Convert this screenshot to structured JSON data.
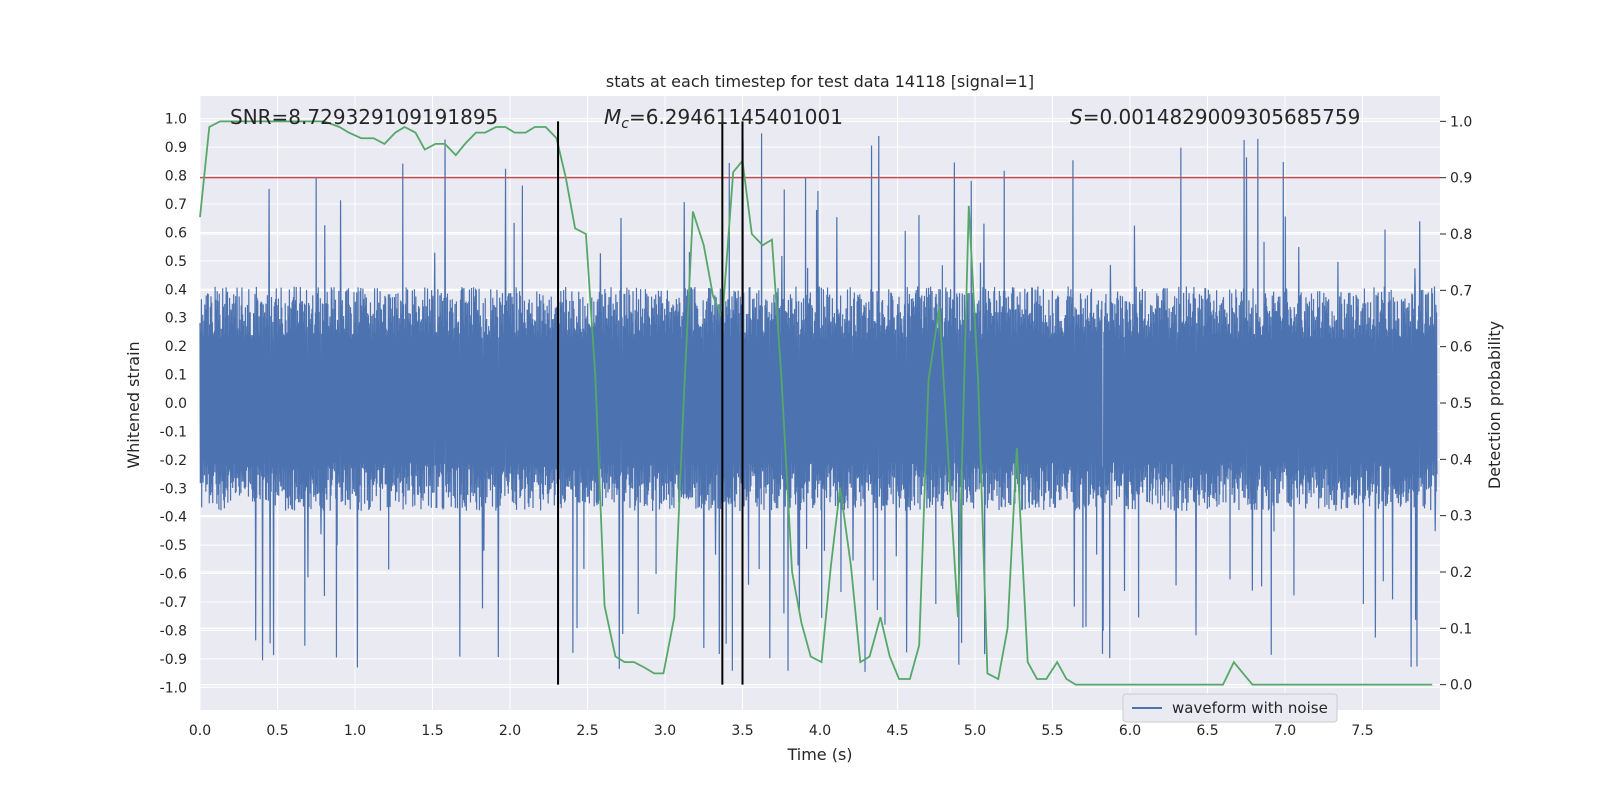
{
  "chart_data": {
    "type": "line",
    "title": "stats at each timestep for test data 14118 [signal=1]",
    "xlabel": "Time (s)",
    "ylabel": "Whitened strain",
    "ylabel_right": "Detection probability",
    "xlim": [
      0.0,
      8.0
    ],
    "ylim": [
      -1.08,
      1.08
    ],
    "ylim_right": [
      -0.045,
      1.045
    ],
    "x_ticks": [
      "0.0",
      "0.5",
      "1.0",
      "1.5",
      "2.0",
      "2.5",
      "3.0",
      "3.5",
      "4.0",
      "4.5",
      "5.0",
      "5.5",
      "6.0",
      "6.5",
      "7.0",
      "7.5"
    ],
    "y_ticks": [
      "1.0",
      "0.9",
      "0.8",
      "0.7",
      "0.6",
      "0.5",
      "0.4",
      "0.3",
      "0.2",
      "0.1",
      "0.0",
      "-0.1",
      "-0.2",
      "-0.3",
      "-0.4",
      "-0.5",
      "-0.6",
      "-0.7",
      "-0.8",
      "-0.9",
      "-1.0"
    ],
    "y_ticks_right": [
      "1.0",
      "0.9",
      "0.8",
      "0.7",
      "0.6",
      "0.5",
      "0.4",
      "0.3",
      "0.2",
      "0.1",
      "0.0"
    ],
    "grid": true,
    "legend": {
      "position": "lower-right",
      "entries": [
        "waveform with noise"
      ]
    },
    "annotations": {
      "snr": "SNR=8.729329109191895",
      "mc": "=6.29461145401001",
      "mc_symbol": "M",
      "mc_sub": "c",
      "s": "=0.0014829009305685759",
      "s_symbol": "S"
    },
    "colors": {
      "waveform": "#4c72b0",
      "probability": "#55a868",
      "threshold": "#c44e52",
      "markers": "#000000",
      "background": "#eaeaf2",
      "grid": "#ffffff"
    },
    "threshold_right": 0.9,
    "vertical_markers_x": [
      2.31,
      3.37,
      3.5
    ],
    "waveform_envelope": {
      "dense_band": [
        -0.38,
        0.41
      ],
      "spike_range": [
        -0.97,
        1.0
      ],
      "sample_rate_hz": 2048
    },
    "series": [
      {
        "name": "",
        "axis": "right",
        "x": [
          0.0,
          0.06,
          0.13,
          0.2,
          0.3,
          0.4,
          0.5,
          0.6,
          0.7,
          0.8,
          0.9,
          0.96,
          1.04,
          1.12,
          1.19,
          1.26,
          1.32,
          1.39,
          1.45,
          1.52,
          1.58,
          1.65,
          1.71,
          1.78,
          1.84,
          1.91,
          1.97,
          2.03,
          2.1,
          2.16,
          2.23,
          2.3,
          2.36,
          2.42,
          2.49,
          2.55,
          2.61,
          2.68,
          2.74,
          2.8,
          2.87,
          2.93,
          2.99,
          3.06,
          3.12,
          3.18,
          3.25,
          3.31,
          3.37,
          3.44,
          3.5,
          3.56,
          3.63,
          3.69,
          3.75,
          3.82,
          3.88,
          3.94,
          4.01,
          4.07,
          4.13,
          4.2,
          4.26,
          4.32,
          4.39,
          4.45,
          4.51,
          4.58,
          4.64,
          4.7,
          4.77,
          4.83,
          4.89,
          4.96,
          5.02,
          5.08,
          5.15,
          5.21,
          5.27,
          5.34,
          5.4,
          5.46,
          5.53,
          5.59,
          5.65,
          5.72,
          5.78,
          5.84,
          5.91,
          5.97,
          6.03,
          6.1,
          6.16,
          6.22,
          6.29,
          6.35,
          6.41,
          6.48,
          6.54,
          6.6,
          6.67,
          6.73,
          6.79,
          6.86,
          6.92,
          7.0,
          7.2,
          7.4,
          7.6,
          7.8,
          7.95
        ],
        "values": [
          0.83,
          0.99,
          1.0,
          1.0,
          1.0,
          1.0,
          1.0,
          1.0,
          1.0,
          1.0,
          0.99,
          0.98,
          0.97,
          0.97,
          0.96,
          0.98,
          0.99,
          0.98,
          0.95,
          0.96,
          0.96,
          0.94,
          0.96,
          0.98,
          0.98,
          0.99,
          0.99,
          0.98,
          0.98,
          0.99,
          0.99,
          0.97,
          0.9,
          0.81,
          0.8,
          0.55,
          0.14,
          0.05,
          0.04,
          0.04,
          0.03,
          0.02,
          0.02,
          0.12,
          0.5,
          0.84,
          0.78,
          0.69,
          0.65,
          0.91,
          0.93,
          0.8,
          0.78,
          0.79,
          0.55,
          0.2,
          0.11,
          0.05,
          0.04,
          0.21,
          0.35,
          0.21,
          0.04,
          0.05,
          0.12,
          0.05,
          0.01,
          0.01,
          0.07,
          0.54,
          0.67,
          0.39,
          0.12,
          0.85,
          0.54,
          0.02,
          0.01,
          0.1,
          0.42,
          0.04,
          0.01,
          0.01,
          0.04,
          0.01,
          0.0,
          0.0,
          0.0,
          0.0,
          0.0,
          0.0,
          0.0,
          0.0,
          0.0,
          0.0,
          0.0,
          0.0,
          0.0,
          0.0,
          0.0,
          0.0,
          0.04,
          0.02,
          0.0,
          0.0,
          0.0,
          0.0,
          0.0,
          0.0,
          0.0,
          0.0,
          0.0
        ]
      }
    ]
  }
}
